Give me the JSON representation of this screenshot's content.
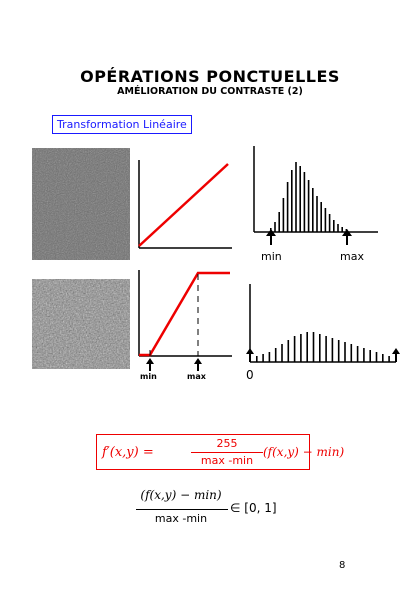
{
  "title": "OPÉRATIONS PONCTUELLES",
  "subtitle": "AMÉLIORATION DU CONTRASTE (2)",
  "section_label": "Transformation Linéaire",
  "histogram_top": {
    "min_label": "min",
    "max_label": "max"
  },
  "transform_bottom": {
    "min_label": "min",
    "max_label": "max"
  },
  "histogram_bottom": {
    "zero_label": "0"
  },
  "formula": {
    "lhs": "f′(x,y) =",
    "numerator": "255",
    "denominator": "max -min",
    "rhs": "(f(x,y) − min)"
  },
  "formula2": {
    "numerator": "(f(x,y) − min)",
    "denominator": "max -min",
    "suffix": "∈ [0, 1]"
  },
  "page_number": "8",
  "colors": {
    "accent_red": "#e00000",
    "box_blue": "#1a1aff"
  }
}
